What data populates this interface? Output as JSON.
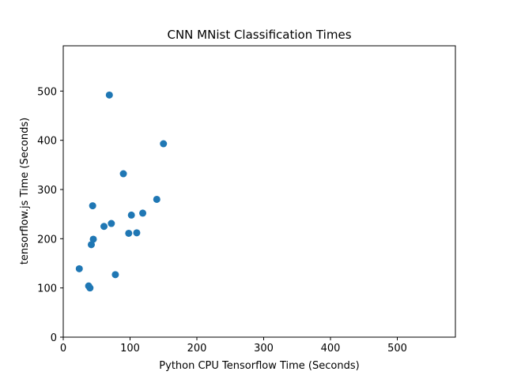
{
  "chart_data": {
    "type": "scatter",
    "title": "CNN MNist Classification Times",
    "xlabel": "Python CPU Tensorflow Time (Seconds)",
    "ylabel": "tensorflow.js Time (Seconds)",
    "xlim": [
      0,
      587
    ],
    "ylim": [
      0,
      592
    ],
    "xticks": [
      0,
      100,
      200,
      300,
      400,
      500
    ],
    "yticks": [
      0,
      100,
      200,
      300,
      400,
      500
    ],
    "grid": false,
    "marker_color": "#1f77b4",
    "series": [
      {
        "x": [
          69,
          150,
          90,
          140,
          44,
          119,
          102,
          72,
          61,
          45,
          98,
          110,
          42,
          24,
          78,
          38,
          40
        ],
        "y": [
          492,
          393,
          332,
          280,
          267,
          252,
          248,
          231,
          225,
          199,
          211,
          212,
          188,
          139,
          127,
          104,
          100
        ]
      }
    ]
  }
}
